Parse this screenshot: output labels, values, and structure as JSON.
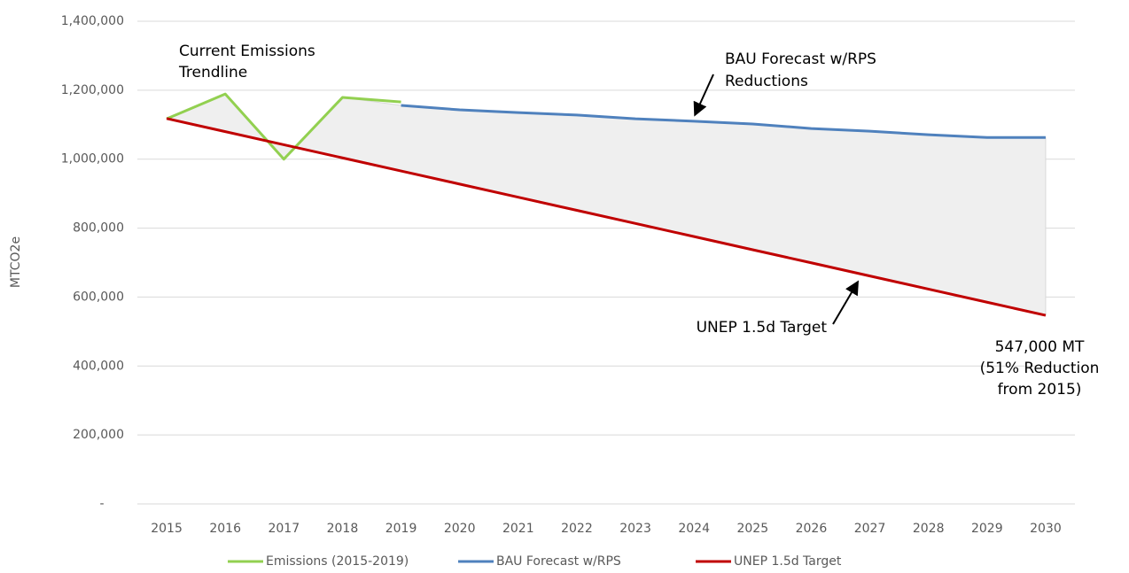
{
  "chart_data": {
    "type": "line",
    "y_label": "MTCO2e",
    "categories": [
      "2015",
      "2016",
      "2017",
      "2018",
      "2019",
      "2020",
      "2021",
      "2022",
      "2023",
      "2024",
      "2025",
      "2026",
      "2027",
      "2028",
      "2029",
      "2030"
    ],
    "series": [
      {
        "name": "Emissions (2015-2019)",
        "color": "#92d050",
        "values": [
          1117000,
          1189000,
          1000000,
          1179000,
          1166000,
          null,
          null,
          null,
          null,
          null,
          null,
          null,
          null,
          null,
          null,
          null
        ]
      },
      {
        "name": "BAU Forecast w/RPS",
        "color": "#4f81bd",
        "values": [
          null,
          null,
          null,
          null,
          1156000,
          1143000,
          1135000,
          1128000,
          1117000,
          1110000,
          1102000,
          1089000,
          1081000,
          1071000,
          1063000,
          1063000
        ]
      },
      {
        "name": "UNEP 1.5d Target",
        "color": "#c00000",
        "values": [
          1118000,
          1079900,
          1041900,
          1003800,
          965700,
          927700,
          889600,
          851500,
          813500,
          775400,
          737300,
          699300,
          661200,
          623100,
          585100,
          547000
        ]
      }
    ],
    "ylim": [
      0,
      1400000
    ],
    "yticks": [
      {
        "value": 0,
        "label": "-"
      },
      {
        "value": 200000,
        "label": "200,000"
      },
      {
        "value": 400000,
        "label": "400,000"
      },
      {
        "value": 600000,
        "label": "600,000"
      },
      {
        "value": 800000,
        "label": "800,000"
      },
      {
        "value": 1000000,
        "label": "1,000,000"
      },
      {
        "value": 1200000,
        "label": "1,200,000"
      },
      {
        "value": 1400000,
        "label": "1,400,000"
      }
    ],
    "grid": true,
    "legend": "bottom",
    "annotations": [
      {
        "lines": [
          "Current Emissions",
          "Trendline"
        ]
      },
      {
        "lines": [
          "BAU Forecast w/RPS",
          "Reductions"
        ]
      },
      {
        "lines": [
          "UNEP 1.5d Target"
        ]
      },
      {
        "lines": [
          "547,000 MT",
          "(51% Reduction",
          "from 2015)"
        ]
      }
    ]
  }
}
